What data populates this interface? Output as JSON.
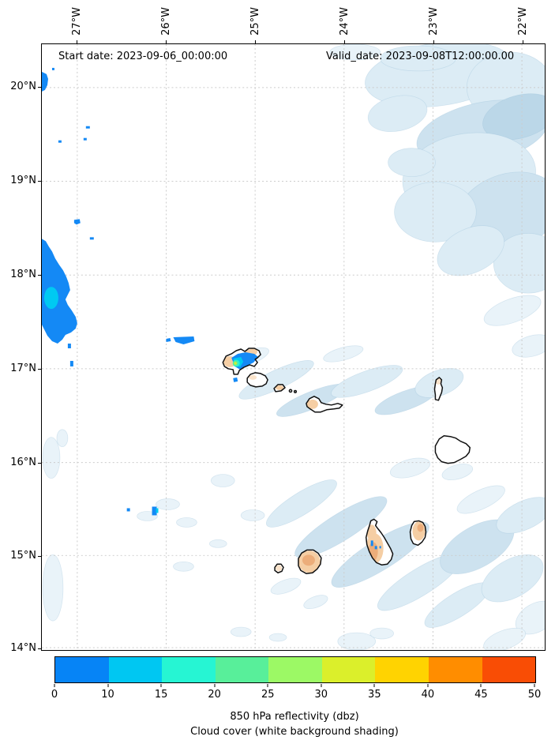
{
  "figure": {
    "start_date_label": "Start date: 2023-09-06_00:00:00",
    "valid_date_label": "Valid_date: 2023-09-08T12:00:00.00"
  },
  "axes": {
    "lon_ticks": [
      "27°W",
      "26°W",
      "25°W",
      "24°W",
      "23°W",
      "22°W"
    ],
    "lat_ticks": [
      "20°N",
      "19°N",
      "18°N",
      "17°N",
      "16°N",
      "15°N",
      "14°N"
    ]
  },
  "colorbar": {
    "tick_labels": [
      "0",
      "10",
      "15",
      "20",
      "25",
      "30",
      "35",
      "40",
      "45",
      "50"
    ],
    "segment_colors": [
      "#0684F6",
      "#00C7F2",
      "#26F5D3",
      "#58EF9A",
      "#9CF965",
      "#DBEF2B",
      "#FFD301",
      "#FF8D00",
      "#F94D05"
    ],
    "caption_line1": "850 hPa reflectivity (dbz)",
    "caption_line2": "Cloud cover (white background shading)"
  },
  "colors": {
    "cloud_faint": "#E9F3F9",
    "cloud_base": "#DCECF5",
    "cloud_mid": "#CDE2EF",
    "cloud_dense": "#BBD7E8",
    "grid": "#CCCCCC",
    "reflect_blue": "#1489F5",
    "reflect_cyan": "#00C9F2",
    "reflect_teal": "#2FF0CC",
    "reflect_green": "#69EF8E",
    "reflect_yellow": "#C9F23A",
    "land_peach": "#F5CEA4",
    "land_orange": "#ECAD7A",
    "land_light": "#FAE3CB"
  },
  "chart_data": {
    "type": "heatmap",
    "title": "",
    "annotations": [
      "Start date: 2023-09-06_00:00:00",
      "Valid_date: 2023-09-08T12:00:00.00"
    ],
    "x_axis": {
      "direction": "longitude",
      "ticks": [
        "27°W",
        "26°W",
        "25°W",
        "24°W",
        "23°W",
        "22°W"
      ],
      "range_deg": [
        -27.4,
        -21.74
      ]
    },
    "y_axis": {
      "direction": "latitude",
      "ticks": [
        "20°N",
        "19°N",
        "18°N",
        "17°N",
        "16°N",
        "15°N",
        "14°N"
      ],
      "range_deg": [
        13.97,
        20.46
      ]
    },
    "grid": true,
    "colorbar": {
      "label": "850 hPa reflectivity (dbz)",
      "sub_label": "Cloud cover (white background shading)",
      "units": "dbz",
      "orientation": "horizontal-bottom",
      "boundaries": [
        0,
        10,
        15,
        20,
        25,
        30,
        35,
        40,
        45,
        50
      ],
      "colors": [
        "#0684F6",
        "#00C7F2",
        "#26F5D3",
        "#58EF9A",
        "#9CF965",
        "#DBEF2B",
        "#FFD301",
        "#FF8D00",
        "#F94D05"
      ]
    },
    "reflectivity_cells": [
      {
        "lon": -27.4,
        "lat": 17.75,
        "approx_max_dbz": 15,
        "note": "largest cell, clipped by west map edge, 10-15 dbz core"
      },
      {
        "lon": -27.45,
        "lat": 20.05,
        "approx_max_dbz": 10,
        "note": "small cell on west edge at 20N"
      },
      {
        "lon": -25.15,
        "lat": 17.05,
        "approx_max_dbz": 35,
        "note": "convective cell over Santo Antao island, ringed 10/15/20/30 dbz core"
      },
      {
        "lon": -25.9,
        "lat": 17.32,
        "approx_max_dbz": 10,
        "note": "thin streak west of Santo Antao"
      },
      {
        "lon": -25.25,
        "lat": 16.93,
        "approx_max_dbz": 10
      },
      {
        "lon": -26.9,
        "lat": 18.55,
        "approx_max_dbz": 10
      },
      {
        "lon": -26.95,
        "lat": 18.35,
        "approx_max_dbz": 10
      },
      {
        "lon": -27.2,
        "lat": 17.1,
        "approx_max_dbz": 10
      },
      {
        "lon": -26.15,
        "lat": 15.5,
        "approx_max_dbz": 15
      },
      {
        "lon": -26.45,
        "lat": 15.48,
        "approx_max_dbz": 10
      },
      {
        "lon": -23.65,
        "lat": 15.12,
        "approx_max_dbz": 10,
        "note": "tiny specks over Santiago island"
      }
    ],
    "cloud_cover_regions": [
      {
        "area": "northeast quadrant ~23.6W-21.8W / 17.9N-20.45N",
        "description": "large stratiform cloud shield, densest band sloping NE"
      },
      {
        "area": "~25.2W-21.9W / 14.2N-16.3N",
        "description": "diagonal NE-SW cloud streaks across the southern islands"
      },
      {
        "area": "~25.6W-23.4W / 16.4N-17.3N",
        "description": "thin streaks along the northern island chain"
      },
      {
        "area": "scattered",
        "description": "small faint patches near west edge and south-center"
      }
    ],
    "map_features": {
      "region": "Cape Verde archipelago coastlines (black outlines)",
      "islands_outlined": [
        "Santo Antão",
        "São Vicente",
        "Santa Luzia",
        "Branco",
        "Raso",
        "São Nicolau",
        "Sal",
        "Boa Vista",
        "Brava",
        "Fogo",
        "Santiago",
        "Maio"
      ]
    }
  }
}
